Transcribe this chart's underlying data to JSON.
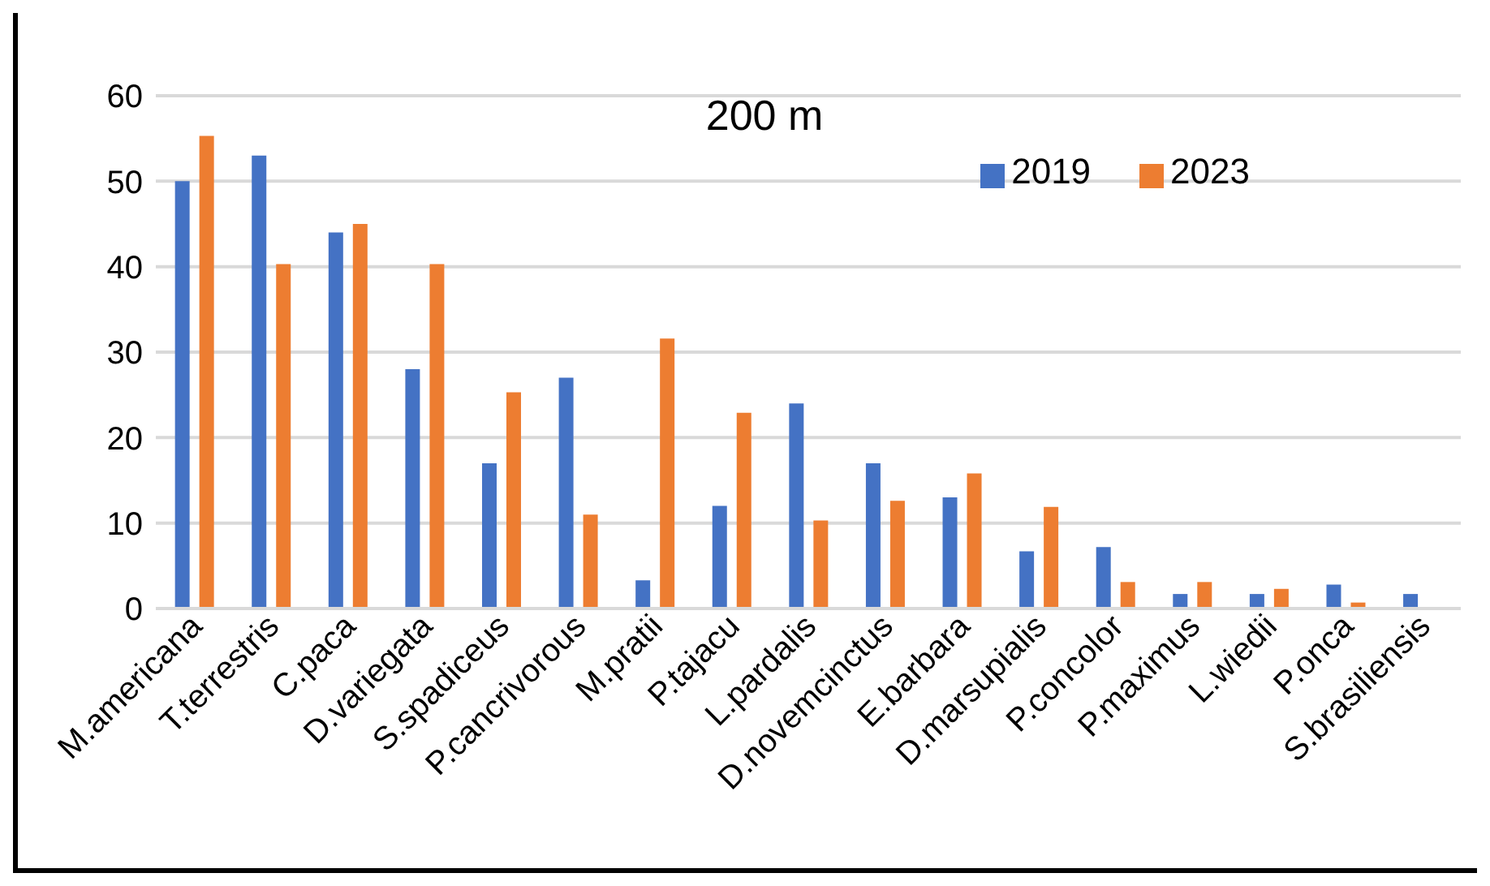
{
  "chart_data": {
    "type": "bar",
    "title": "200 m",
    "categories": [
      "M.americana",
      "T.terrestris",
      "C.paca",
      "D.variegata",
      "S.spadiceus",
      "P.cancrivorous",
      "M.pratii",
      "P.tajacu",
      "L.pardalis",
      "D.novemcinctus",
      "E.barbara",
      "D.marsupialis",
      "P.concolor",
      "P.maximus",
      "L.wiedii",
      "P.onca",
      "S.brasiliensis"
    ],
    "series": [
      {
        "name": "2019",
        "color": "#4472c4",
        "values": [
          50,
          53,
          44,
          28,
          17,
          27,
          3.3,
          12,
          24,
          17,
          13,
          6.7,
          7.2,
          1.7,
          1.7,
          2.8,
          1.7
        ]
      },
      {
        "name": "2023",
        "color": "#ed7d31",
        "values": [
          55.3,
          40.3,
          45,
          40.3,
          25.3,
          11,
          31.6,
          22.9,
          10.3,
          12.6,
          15.8,
          11.9,
          3.1,
          3.1,
          2.3,
          0.7,
          null
        ]
      }
    ],
    "ylim": [
      0,
      60
    ],
    "yticks": [
      0,
      10,
      20,
      30,
      40,
      50,
      60
    ],
    "grid": "y",
    "legend": "top right"
  }
}
